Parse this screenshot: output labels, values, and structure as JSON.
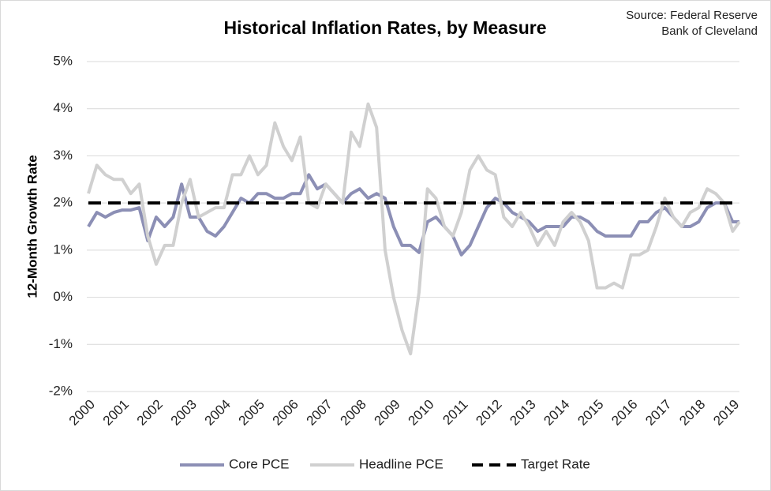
{
  "chart_data": {
    "type": "line",
    "title": "Historical Inflation Rates, by Measure",
    "annotation": [
      "Source: Federal Reserve",
      "Bank of Cleveland"
    ],
    "y_label": "12-Month Growth Rate",
    "x": [
      2000,
      2000.25,
      2000.5,
      2000.75,
      2001,
      2001.25,
      2001.5,
      2001.75,
      2002,
      2002.25,
      2002.5,
      2002.75,
      2003,
      2003.25,
      2003.5,
      2003.75,
      2004,
      2004.25,
      2004.5,
      2004.75,
      2005,
      2005.25,
      2005.5,
      2005.75,
      2006,
      2006.25,
      2006.5,
      2006.75,
      2007,
      2007.25,
      2007.5,
      2007.75,
      2008,
      2008.25,
      2008.5,
      2008.75,
      2009,
      2009.25,
      2009.5,
      2009.75,
      2010,
      2010.25,
      2010.5,
      2010.75,
      2011,
      2011.25,
      2011.5,
      2011.75,
      2012,
      2012.25,
      2012.5,
      2012.75,
      2013,
      2013.25,
      2013.5,
      2013.75,
      2014,
      2014.25,
      2014.5,
      2014.75,
      2015,
      2015.25,
      2015.5,
      2015.75,
      2016,
      2016.25,
      2016.5,
      2016.75,
      2017,
      2017.25,
      2017.5,
      2017.75,
      2018,
      2018.25,
      2018.5,
      2018.75,
      2019,
      2019.2
    ],
    "series": [
      {
        "name": "Core PCE",
        "color": "#8c8fb5",
        "width": 4,
        "values": [
          1.5,
          1.8,
          1.7,
          1.8,
          1.85,
          1.85,
          1.9,
          1.2,
          1.7,
          1.5,
          1.7,
          2.4,
          1.7,
          1.7,
          1.4,
          1.3,
          1.5,
          1.8,
          2.1,
          2.0,
          2.2,
          2.2,
          2.1,
          2.1,
          2.2,
          2.2,
          2.6,
          2.3,
          2.4,
          2.2,
          2.0,
          2.2,
          2.3,
          2.1,
          2.2,
          2.1,
          1.5,
          1.1,
          1.1,
          0.95,
          1.6,
          1.7,
          1.5,
          1.3,
          0.9,
          1.1,
          1.5,
          1.9,
          2.1,
          2.0,
          1.8,
          1.7,
          1.6,
          1.4,
          1.5,
          1.5,
          1.5,
          1.7,
          1.7,
          1.6,
          1.4,
          1.3,
          1.3,
          1.3,
          1.3,
          1.6,
          1.6,
          1.8,
          1.9,
          1.7,
          1.5,
          1.5,
          1.6,
          1.9,
          2.0,
          2.0,
          1.6,
          1.6
        ]
      },
      {
        "name": "Headline PCE",
        "color": "#d0d0d0",
        "width": 4,
        "values": [
          2.2,
          2.8,
          2.6,
          2.5,
          2.5,
          2.2,
          2.4,
          1.3,
          0.7,
          1.1,
          1.1,
          2.0,
          2.5,
          1.7,
          1.8,
          1.9,
          1.9,
          2.6,
          2.6,
          3.0,
          2.6,
          2.8,
          3.7,
          3.2,
          2.9,
          3.4,
          2.0,
          1.9,
          2.4,
          2.2,
          2.0,
          3.5,
          3.2,
          4.1,
          3.6,
          1.0,
          0.0,
          -0.7,
          -1.2,
          0.1,
          2.3,
          2.1,
          1.5,
          1.3,
          1.8,
          2.7,
          3.0,
          2.7,
          2.6,
          1.7,
          1.5,
          1.8,
          1.5,
          1.1,
          1.4,
          1.1,
          1.6,
          1.8,
          1.6,
          1.2,
          0.2,
          0.2,
          0.3,
          0.2,
          0.9,
          0.9,
          1.0,
          1.5,
          2.1,
          1.7,
          1.5,
          1.8,
          1.9,
          2.3,
          2.2,
          2.0,
          1.4,
          1.6
        ]
      },
      {
        "name": "Target Rate",
        "color": "#000000",
        "width": 4,
        "dashed": true,
        "x": [
          2000,
          2019.2
        ],
        "values": [
          2,
          2
        ]
      }
    ],
    "xlim": [
      2000,
      2019.2
    ],
    "xticks": [
      2000,
      2001,
      2002,
      2003,
      2004,
      2005,
      2006,
      2007,
      2008,
      2009,
      2010,
      2011,
      2012,
      2013,
      2014,
      2015,
      2016,
      2017,
      2018,
      2019
    ],
    "ylim": [
      -2,
      5
    ],
    "yticks": [
      {
        "value": -2,
        "label": "-2%"
      },
      {
        "value": -1,
        "label": "-1%"
      },
      {
        "value": 0,
        "label": "0%"
      },
      {
        "value": 1,
        "label": "1%"
      },
      {
        "value": 2,
        "label": "2%"
      },
      {
        "value": 3,
        "label": "3%"
      },
      {
        "value": 4,
        "label": "4%"
      },
      {
        "value": 5,
        "label": "5%"
      }
    ],
    "grid": true,
    "legend": "bottom"
  }
}
